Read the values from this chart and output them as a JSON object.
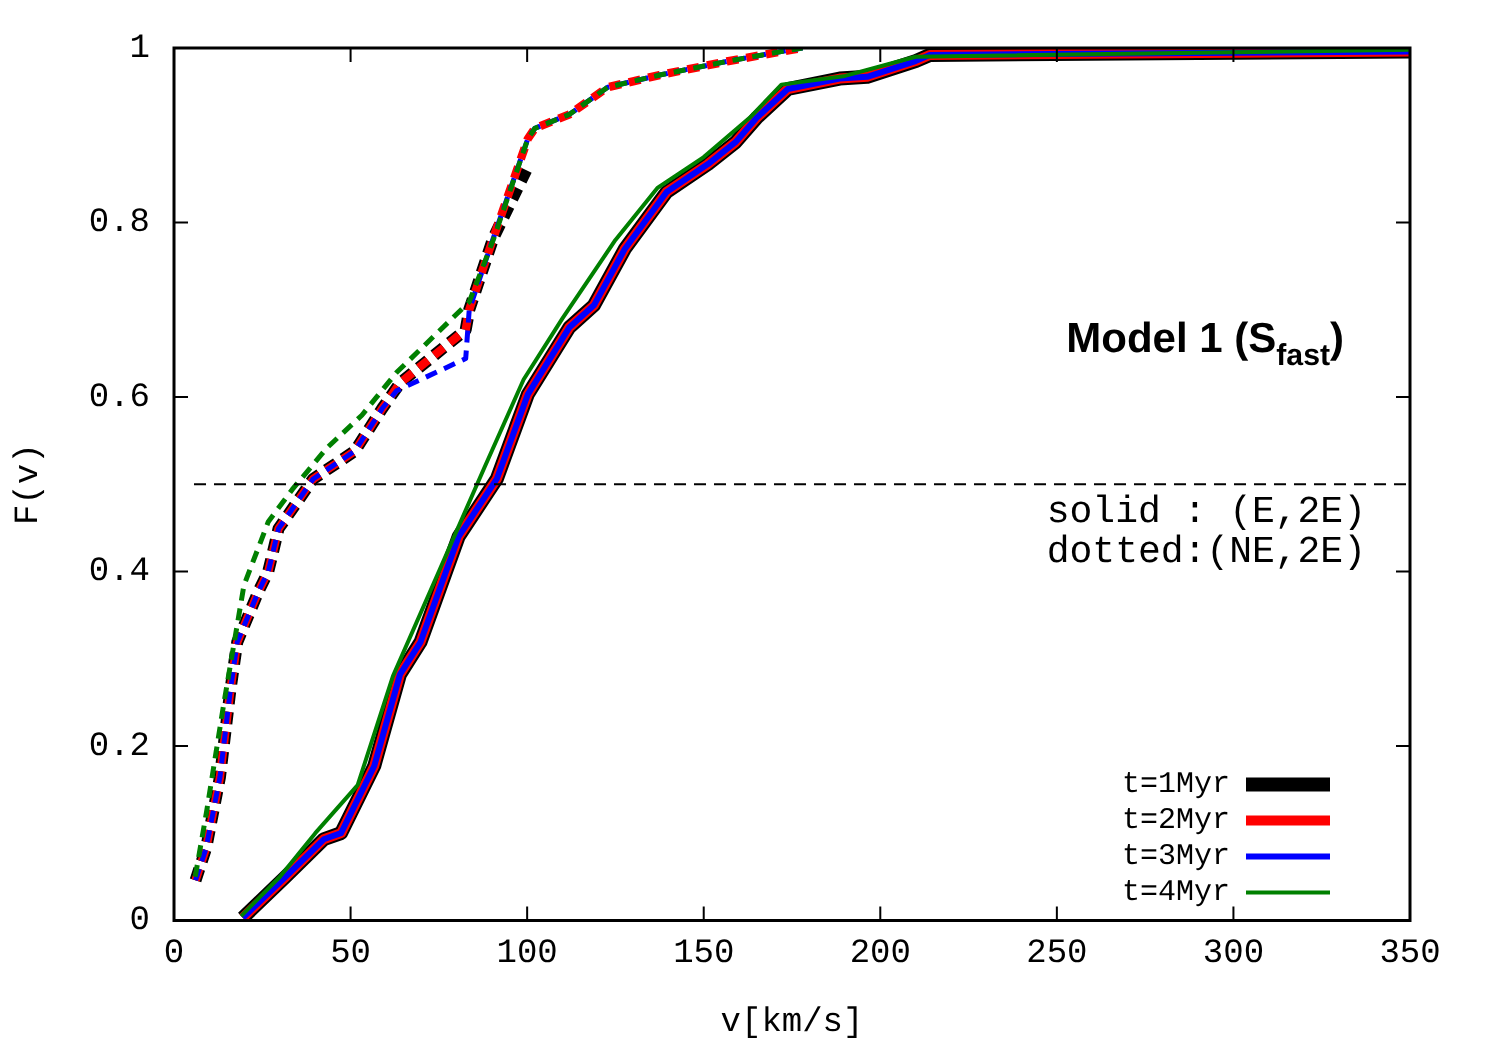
{
  "chart_data": {
    "type": "line",
    "xlabel": "v[km/s]",
    "ylabel": "F(v)",
    "xlim": [
      0,
      350
    ],
    "xticks": [
      0,
      50,
      100,
      150,
      200,
      250,
      300,
      350
    ],
    "ylim": [
      0,
      1
    ],
    "yticks": [
      0,
      0.2,
      0.4,
      0.6,
      0.8,
      1
    ],
    "grid": false,
    "legend": "bottom right",
    "marker": "none",
    "ref_lines": [
      {
        "axis": "y",
        "value": 0.5,
        "line_style": "dashed",
        "color": "#000000"
      }
    ],
    "annotations": [
      "Model 1 (S$_{fast}$)",
      "solid : (E,2E)",
      "dotted:(NE,2E)"
    ],
    "series": [
      {
        "name": "t=1Myr",
        "color": "#000000",
        "line_style": "solid",
        "x": [
          19.5,
          31.6,
          42.4,
          47.3,
          56.7,
          64,
          69.8,
          80.6,
          91.4,
          100.2,
          112,
          118.9,
          127.7,
          139.5,
          151.2,
          159,
          165,
          173.8,
          188.5,
          196.3,
          210,
          214,
          350
        ],
        "values": [
          0.003,
          0.05,
          0.093,
          0.1,
          0.177,
          0.282,
          0.319,
          0.44,
          0.506,
          0.603,
          0.68,
          0.705,
          0.77,
          0.835,
          0.867,
          0.892,
          0.92,
          0.953,
          0.965,
          0.967,
          0.985,
          0.992,
          0.996
        ]
      },
      {
        "name": "t=2Myr",
        "color": "#ff0000",
        "line_style": "solid",
        "x": [
          19.5,
          31.6,
          42.4,
          47.3,
          56.7,
          64,
          69.8,
          80.6,
          91.4,
          100.2,
          112,
          118.9,
          127.7,
          139.5,
          151.2,
          159,
          165,
          173.8,
          188.5,
          196.3,
          210,
          214,
          350
        ],
        "values": [
          0.003,
          0.05,
          0.093,
          0.1,
          0.177,
          0.282,
          0.319,
          0.44,
          0.506,
          0.603,
          0.68,
          0.705,
          0.77,
          0.835,
          0.867,
          0.892,
          0.92,
          0.953,
          0.965,
          0.967,
          0.985,
          0.992,
          0.996
        ]
      },
      {
        "name": "t=3Myr",
        "color": "#0000ff",
        "line_style": "solid",
        "x": [
          19.5,
          31.6,
          42.4,
          47.3,
          56.7,
          64,
          69.8,
          80.6,
          91.4,
          100.2,
          112,
          118.9,
          127.7,
          139.5,
          151.2,
          159,
          165,
          173.8,
          188.5,
          196.3,
          210,
          214,
          350
        ],
        "values": [
          0.003,
          0.05,
          0.093,
          0.1,
          0.177,
          0.282,
          0.319,
          0.44,
          0.506,
          0.603,
          0.68,
          0.705,
          0.77,
          0.835,
          0.867,
          0.892,
          0.92,
          0.953,
          0.965,
          0.967,
          0.985,
          0.992,
          0.996
        ]
      },
      {
        "name": "t=4Myr",
        "color": "#008000",
        "line_style": "solid",
        "x": [
          19,
          30,
          40,
          52,
          62,
          75,
          88,
          99,
          110,
          125,
          137,
          150,
          163,
          172,
          190,
          210,
          350
        ],
        "values": [
          0.005,
          0.05,
          0.1,
          0.155,
          0.28,
          0.4,
          0.52,
          0.62,
          0.69,
          0.78,
          0.84,
          0.875,
          0.92,
          0.958,
          0.968,
          0.99,
          0.998
        ]
      },
      {
        "color": "#000000",
        "line_style": "dashed",
        "x": [
          6.1,
          9.1,
          13,
          15.9,
          17.9,
          23.8,
          26.7,
          29.6,
          39.4,
          51.2,
          59,
          64,
          82.6,
          83.6,
          90.4,
          100.2
        ],
        "values": [
          0.046,
          0.083,
          0.164,
          0.262,
          0.319,
          0.376,
          0.4,
          0.449,
          0.506,
          0.538,
          0.587,
          0.616,
          0.677,
          0.7,
          0.782,
          0.864
        ]
      },
      {
        "color": "#ff0000",
        "line_style": "dashed",
        "x": [
          6.1,
          9.1,
          13,
          15.9,
          17.9,
          23.8,
          26.7,
          29.6,
          39.4,
          51.2,
          59,
          64,
          82.6,
          83.6,
          90.4,
          100.2,
          102.2,
          112,
          122.8,
          137.5,
          157,
          174.8,
          178
        ],
        "values": [
          0.046,
          0.083,
          0.164,
          0.262,
          0.319,
          0.376,
          0.4,
          0.449,
          0.506,
          0.538,
          0.587,
          0.616,
          0.677,
          0.7,
          0.782,
          0.896,
          0.908,
          0.924,
          0.955,
          0.969,
          0.985,
          0.998,
          1
        ]
      },
      {
        "color": "#0000ff",
        "line_style": "dashed",
        "x": [
          6.1,
          9.1,
          13,
          15.9,
          17.9,
          23.8,
          26.7,
          29.6,
          39.4,
          51.2,
          59,
          63,
          82.6,
          83.6,
          90.4,
          100.2,
          102.2,
          112,
          122.8,
          137.5,
          157,
          174.8,
          178
        ],
        "values": [
          0.046,
          0.083,
          0.164,
          0.262,
          0.319,
          0.376,
          0.4,
          0.449,
          0.506,
          0.538,
          0.587,
          0.607,
          0.644,
          0.7,
          0.782,
          0.896,
          0.908,
          0.924,
          0.955,
          0.969,
          0.985,
          0.998,
          1
        ]
      },
      {
        "color": "#008000",
        "line_style": "dashed",
        "x": [
          6,
          9.2,
          14,
          19.8,
          26.7,
          33.5,
          43.4,
          53.2,
          63,
          83.6,
          90.4,
          100.2,
          102.2,
          112,
          122.8,
          137.5,
          157,
          174.8,
          178
        ],
        "values": [
          0.05,
          0.124,
          0.246,
          0.384,
          0.457,
          0.494,
          0.542,
          0.579,
          0.628,
          0.709,
          0.78,
          0.896,
          0.908,
          0.924,
          0.955,
          0.969,
          0.985,
          0.998,
          1
        ]
      }
    ]
  }
}
